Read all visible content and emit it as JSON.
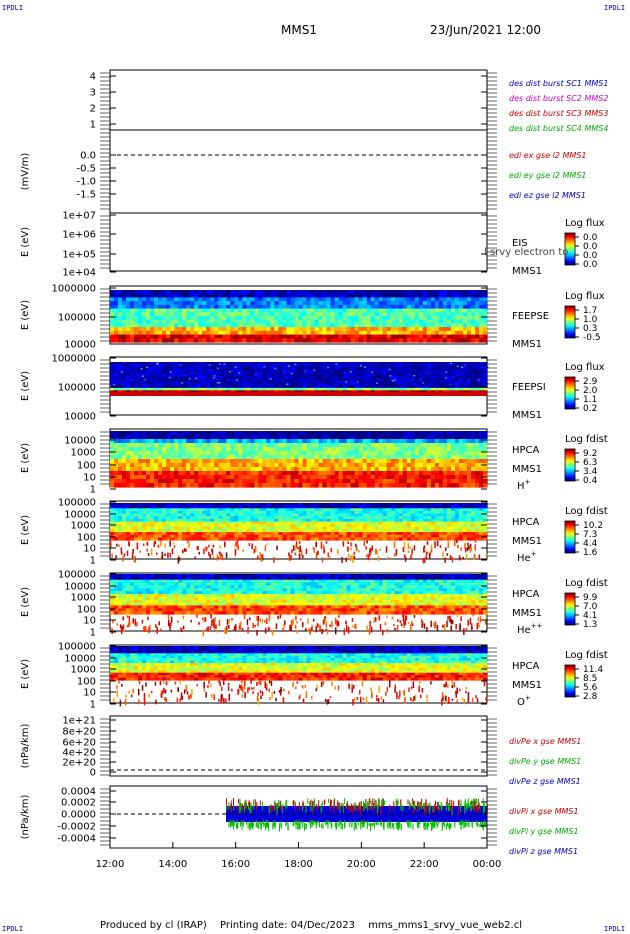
{
  "header": {
    "corner_left_top": "IPDLI",
    "corner_right_top": "IPDLI",
    "corner_left_bottom": "IPDLI",
    "corner_right_bottom": "IPDLI",
    "title": "MMS1",
    "datetime": "23/Jun/2021 12:00"
  },
  "footer": {
    "produced": "Produced by cl (IRAP)",
    "printing": "Printing date: 04/Dec/2023",
    "file": "mms_mms1_srvy_vue_web2.cl"
  },
  "chart_data": {
    "x_axis": {
      "ticks": [
        "12:00",
        "14:00",
        "16:00",
        "18:00",
        "20:00",
        "22:00",
        "00:00"
      ]
    },
    "panels": [
      {
        "id": "sc",
        "type": "line",
        "ylabel": "",
        "yticks": [
          "4",
          "3",
          "2",
          "1"
        ],
        "legend": [
          {
            "text": "des dist burst SC1 MMS1",
            "color": "#0000cc"
          },
          {
            "text": "des dist burst SC2 MMS2",
            "color": "#cc00cc"
          },
          {
            "text": "des dist burst SC3 MMS3",
            "color": "#cc0000"
          },
          {
            "text": "des dist burst SC4 MMS4",
            "color": "#00aa00"
          }
        ]
      },
      {
        "id": "edi",
        "type": "line",
        "ylabel": "(mV/m)",
        "yticks": [
          "0.0",
          "-0.5",
          "-1.0",
          "-1.5"
        ],
        "legend": [
          {
            "text": "edi ex gse l2 MMS1",
            "color": "#cc0000"
          },
          {
            "text": "edi ey gse l2 MMS1",
            "color": "#00aa00"
          },
          {
            "text": "edi ez gse l2 MMS1",
            "color": "#0000cc"
          }
        ]
      },
      {
        "id": "eis",
        "type": "heatmap",
        "ylabel": "E (eV)",
        "yticks": [
          "1e+07",
          "1e+06",
          "1e+05",
          "1e+04"
        ],
        "side": [
          "EIS",
          "MMS1"
        ],
        "overlay": "l srvy electron to",
        "colorbar": {
          "title": "Log flux",
          "ticks": [
            "0.0",
            "0.0",
            "0.0",
            "0.0"
          ]
        }
      },
      {
        "id": "feepse",
        "type": "heatmap",
        "ylabel": "E (eV)",
        "yticks": [
          "1000000",
          "100000",
          "10000"
        ],
        "side": [
          "FEEPSE",
          "MMS1"
        ],
        "colorbar": {
          "title": "Log flux",
          "ticks": [
            "1.7",
            "1.0",
            "0.3",
            "-0.5"
          ]
        }
      },
      {
        "id": "feepsi",
        "type": "heatmap",
        "ylabel": "E (eV)",
        "yticks": [
          "1000000",
          "100000",
          "10000"
        ],
        "side": [
          "FEEPSI",
          "MMS1"
        ],
        "colorbar": {
          "title": "Log flux",
          "ticks": [
            "2.9",
            "2.0",
            "1.1",
            "0.2"
          ]
        }
      },
      {
        "id": "hpca_h",
        "type": "heatmap",
        "ylabel": "E (eV)",
        "yticks": [
          "10000",
          "1000",
          "100",
          "10",
          "1"
        ],
        "side": [
          "HPCA",
          "MMS1",
          "H+"
        ],
        "colorbar": {
          "title": "Log fdist",
          "ticks": [
            "9.2",
            "6.3",
            "3.4",
            "0.4"
          ]
        }
      },
      {
        "id": "hpca_he",
        "type": "heatmap",
        "ylabel": "E (eV)",
        "yticks": [
          "100000",
          "10000",
          "1000",
          "100",
          "10",
          "1"
        ],
        "side": [
          "HPCA",
          "MMS1",
          "He+"
        ],
        "colorbar": {
          "title": "Log fdist",
          "ticks": [
            "10.2",
            "7.3",
            "4.4",
            "1.6"
          ]
        }
      },
      {
        "id": "hpca_hepp",
        "type": "heatmap",
        "ylabel": "E (eV)",
        "yticks": [
          "100000",
          "10000",
          "1000",
          "100",
          "10",
          "1"
        ],
        "side": [
          "HPCA",
          "MMS1",
          "He++"
        ],
        "colorbar": {
          "title": "Log fdist",
          "ticks": [
            "9.9",
            "7.0",
            "4.1",
            "1.3"
          ]
        }
      },
      {
        "id": "hpca_o",
        "type": "heatmap",
        "ylabel": "E (eV)",
        "yticks": [
          "100000",
          "10000",
          "1000",
          "100",
          "10",
          "1"
        ],
        "side": [
          "HPCA",
          "MMS1",
          "O+"
        ],
        "colorbar": {
          "title": "Log fdist",
          "ticks": [
            "11.4",
            "8.5",
            "5.6",
            "2.8"
          ]
        }
      },
      {
        "id": "divpe",
        "type": "line",
        "ylabel": "(nPa/km)",
        "yticks": [
          "1e+21",
          "8e+20",
          "6e+20",
          "4e+20",
          "2e+20",
          "0"
        ],
        "legend": [
          {
            "text": "divPe x gse MMS1",
            "color": "#cc0000"
          },
          {
            "text": "divPe y gse MMS1",
            "color": "#00aa00"
          },
          {
            "text": "divPe z gse MMS1",
            "color": "#0000cc"
          }
        ]
      },
      {
        "id": "divpi",
        "type": "line",
        "ylabel": "(nPa/km)",
        "yticks": [
          "0.0004",
          "0.0002",
          "0.0000",
          "-0.0002",
          "-0.0004"
        ],
        "legend": [
          {
            "text": "divPi x gse MMS1",
            "color": "#cc0000"
          },
          {
            "text": "divPi y gse MMS1",
            "color": "#00aa00"
          },
          {
            "text": "divPi z gse MMS1",
            "color": "#0000cc"
          }
        ]
      }
    ]
  }
}
